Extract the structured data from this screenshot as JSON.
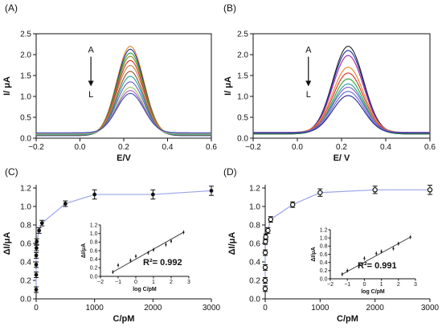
{
  "chart_data": [
    {
      "panel_label": "(A)",
      "type": "line",
      "xlabel": "E/V",
      "ylabel": "I/ μA",
      "xlim": [
        -0.2,
        0.6
      ],
      "ylim": [
        0,
        2.5
      ],
      "xticks": [
        -0.2,
        0.0,
        0.2,
        0.4,
        0.6
      ],
      "xtick_labels": [
        "−0.2",
        "0.0",
        "0.2",
        "0.4",
        "0.6"
      ],
      "yticks": [
        0.0,
        0.5,
        1.0,
        1.5,
        2.0,
        2.5
      ],
      "ytick_labels": [
        "0.0",
        "0.5",
        "1.0",
        "1.5",
        "2.0",
        "2.5"
      ],
      "annotation_top": "A",
      "annotation_bottom": "L",
      "peak_center": 0.23,
      "peak_width": 0.062,
      "series": [
        {
          "peak": 2.2,
          "baseline": 0.07,
          "color": "#f08020"
        },
        {
          "peak": 2.13,
          "baseline": 0.06,
          "color": "#2030a0"
        },
        {
          "peak": 2.04,
          "baseline": 0.07,
          "color": "#30a030"
        },
        {
          "peak": 1.96,
          "baseline": 0.08,
          "color": "#8a8a20"
        },
        {
          "peak": 1.86,
          "baseline": 0.07,
          "color": "#d03030"
        },
        {
          "peak": 1.74,
          "baseline": 0.09,
          "color": "#c08040"
        },
        {
          "peak": 1.6,
          "baseline": 0.07,
          "color": "#905030"
        },
        {
          "peak": 1.48,
          "baseline": 0.08,
          "color": "#20a0a0"
        },
        {
          "peak": 1.35,
          "baseline": 0.1,
          "color": "#6060c0"
        },
        {
          "peak": 1.22,
          "baseline": 0.1,
          "color": "#a0c060"
        },
        {
          "peak": 1.14,
          "baseline": 0.12,
          "color": "#a060c0"
        },
        {
          "peak": 1.07,
          "baseline": 0.13,
          "color": "#4050b0"
        }
      ]
    },
    {
      "panel_label": "(B)",
      "type": "line",
      "xlabel": "E/ V",
      "ylabel": "I/ μA",
      "xlim": [
        -0.2,
        0.6
      ],
      "ylim": [
        0,
        2.5
      ],
      "xticks": [
        -0.2,
        0.0,
        0.2,
        0.4,
        0.6
      ],
      "xtick_labels": [
        "−0.2",
        "0.0",
        "0.2",
        "0.4",
        "0.6"
      ],
      "yticks": [
        0.0,
        0.5,
        1.0,
        1.5,
        2.0,
        2.5
      ],
      "ytick_labels": [
        "0.0",
        "0.5",
        "1.0",
        "1.5",
        "2.0",
        "2.5"
      ],
      "annotation_top": "A",
      "annotation_bottom": "L",
      "peak_center": 0.23,
      "peak_width": 0.07,
      "series": [
        {
          "peak": 2.2,
          "baseline": 0.1,
          "color": "#202020"
        },
        {
          "peak": 2.1,
          "baseline": 0.12,
          "color": "#2030a0"
        },
        {
          "peak": 1.98,
          "baseline": 0.1,
          "color": "#a020a0"
        },
        {
          "peak": 1.7,
          "baseline": 0.14,
          "color": "#f08020"
        },
        {
          "peak": 1.56,
          "baseline": 0.12,
          "color": "#d03030"
        },
        {
          "peak": 1.42,
          "baseline": 0.1,
          "color": "#30a030"
        },
        {
          "peak": 1.3,
          "baseline": 0.12,
          "color": "#20a0a0"
        },
        {
          "peak": 1.22,
          "baseline": 0.14,
          "color": "#8060c0"
        },
        {
          "peak": 1.12,
          "baseline": 0.12,
          "color": "#6060e0"
        },
        {
          "peak": 1.02,
          "baseline": 0.12,
          "color": "#2a2a8a"
        }
      ]
    },
    {
      "panel_label": "(C)",
      "type": "scatter",
      "xlabel": "C/pM",
      "ylabel": "ΔI/μA",
      "xlim": [
        0,
        3000
      ],
      "ylim": [
        0,
        1.2
      ],
      "xticks": [
        0,
        1000,
        2000,
        3000
      ],
      "xtick_labels": [
        "0",
        "1000",
        "2000",
        "3000"
      ],
      "yticks": [
        0.0,
        0.2,
        0.4,
        0.6,
        0.8,
        1.0,
        1.2
      ],
      "ytick_labels": [
        "0.0",
        "0.2",
        "0.4",
        "0.6",
        "0.8",
        "1.0",
        "1.2"
      ],
      "marker": "filled",
      "line_color": "#9aa4e8",
      "points": [
        {
          "x": 0.05,
          "y": 0.1,
          "err": 0.03
        },
        {
          "x": 0.1,
          "y": 0.26,
          "err": 0.03
        },
        {
          "x": 0.5,
          "y": 0.37,
          "err": 0.03
        },
        {
          "x": 1,
          "y": 0.47,
          "err": 0.03
        },
        {
          "x": 5,
          "y": 0.55,
          "err": 0.03
        },
        {
          "x": 10,
          "y": 0.62,
          "err": 0.03
        },
        {
          "x": 50,
          "y": 0.74,
          "err": 0.03
        },
        {
          "x": 100,
          "y": 0.82,
          "err": 0.03
        },
        {
          "x": 500,
          "y": 1.03,
          "err": 0.03
        },
        {
          "x": 1000,
          "y": 1.13,
          "err": 0.05
        },
        {
          "x": 2000,
          "y": 1.13,
          "err": 0.05
        },
        {
          "x": 3000,
          "y": 1.17,
          "err": 0.05
        }
      ],
      "inset": {
        "xlabel": "log C/pM",
        "ylabel": "ΔI/μA",
        "xlim": [
          -2,
          3
        ],
        "ylim": [
          0,
          1.2
        ],
        "xticks": [
          -2,
          -1,
          0,
          1,
          2,
          3
        ],
        "xtick_labels": [
          "−2",
          "−1",
          "0",
          "1",
          "2",
          "3"
        ],
        "yticks": [
          0.0,
          0.2,
          0.4,
          0.6,
          0.8,
          1.0,
          1.2
        ],
        "ytick_labels": [
          "0.0",
          "0.2",
          "0.4",
          "0.6",
          "0.8",
          "1.0",
          "1.2"
        ],
        "r2_label": "R²= 0.992",
        "points": [
          {
            "x": -1.3,
            "y": 0.1
          },
          {
            "x": -1.0,
            "y": 0.26
          },
          {
            "x": -0.3,
            "y": 0.37
          },
          {
            "x": 0.0,
            "y": 0.47
          },
          {
            "x": 0.7,
            "y": 0.55
          },
          {
            "x": 1.0,
            "y": 0.62
          },
          {
            "x": 1.7,
            "y": 0.74
          },
          {
            "x": 2.0,
            "y": 0.82
          },
          {
            "x": 2.7,
            "y": 1.03
          }
        ],
        "fit": [
          [
            -1.3,
            0.1
          ],
          [
            2.7,
            1.03
          ]
        ]
      }
    },
    {
      "panel_label": "(D)",
      "type": "scatter",
      "xlabel": "C/pM",
      "ylabel": "ΔI/μA",
      "xlim": [
        0,
        3000
      ],
      "ylim": [
        0,
        1.2
      ],
      "xticks": [
        0,
        1000,
        2000,
        3000
      ],
      "xtick_labels": [
        "0",
        "1000",
        "2000",
        "3000"
      ],
      "yticks": [
        0.0,
        0.2,
        0.4,
        0.6,
        0.8,
        1.0,
        1.2
      ],
      "ytick_labels": [
        "0.0",
        "0.2",
        "0.4",
        "0.6",
        "0.8",
        "1.0",
        "1.2"
      ],
      "marker": "open",
      "line_color": "#9aa4e8",
      "points": [
        {
          "x": 0.05,
          "y": 0.11,
          "err": 0.03
        },
        {
          "x": 0.1,
          "y": 0.2,
          "err": 0.03
        },
        {
          "x": 0.5,
          "y": 0.34,
          "err": 0.03
        },
        {
          "x": 1,
          "y": 0.5,
          "err": 0.03
        },
        {
          "x": 5,
          "y": 0.62,
          "err": 0.03
        },
        {
          "x": 10,
          "y": 0.67,
          "err": 0.03
        },
        {
          "x": 50,
          "y": 0.74,
          "err": 0.03
        },
        {
          "x": 100,
          "y": 0.86,
          "err": 0.03
        },
        {
          "x": 500,
          "y": 1.02,
          "err": 0.03
        },
        {
          "x": 1000,
          "y": 1.15,
          "err": 0.04
        },
        {
          "x": 2000,
          "y": 1.18,
          "err": 0.04
        },
        {
          "x": 3000,
          "y": 1.18,
          "err": 0.05
        }
      ],
      "inset": {
        "xlabel": "log C/pM",
        "ylabel": "ΔI/μA",
        "xlim": [
          -2,
          3
        ],
        "ylim": [
          0,
          1.2
        ],
        "xticks": [
          -2,
          -1,
          0,
          1,
          2,
          3
        ],
        "xtick_labels": [
          "−2",
          "−1",
          "0",
          "1",
          "2",
          "3"
        ],
        "yticks": [
          0.0,
          0.2,
          0.4,
          0.6,
          0.8,
          1.0,
          1.2
        ],
        "ytick_labels": [
          "0.0",
          "0.2",
          "0.4",
          "0.6",
          "0.8",
          "1.0",
          "1.2"
        ],
        "r2_label": "R²= 0.991",
        "points": [
          {
            "x": -1.3,
            "y": 0.11
          },
          {
            "x": -1.0,
            "y": 0.2
          },
          {
            "x": -0.3,
            "y": 0.34
          },
          {
            "x": 0.0,
            "y": 0.5
          },
          {
            "x": 0.7,
            "y": 0.62
          },
          {
            "x": 1.0,
            "y": 0.67
          },
          {
            "x": 1.7,
            "y": 0.74
          },
          {
            "x": 2.0,
            "y": 0.86
          },
          {
            "x": 2.7,
            "y": 1.02
          }
        ],
        "fit": [
          [
            -1.3,
            0.11
          ],
          [
            2.7,
            1.02
          ]
        ]
      }
    }
  ]
}
